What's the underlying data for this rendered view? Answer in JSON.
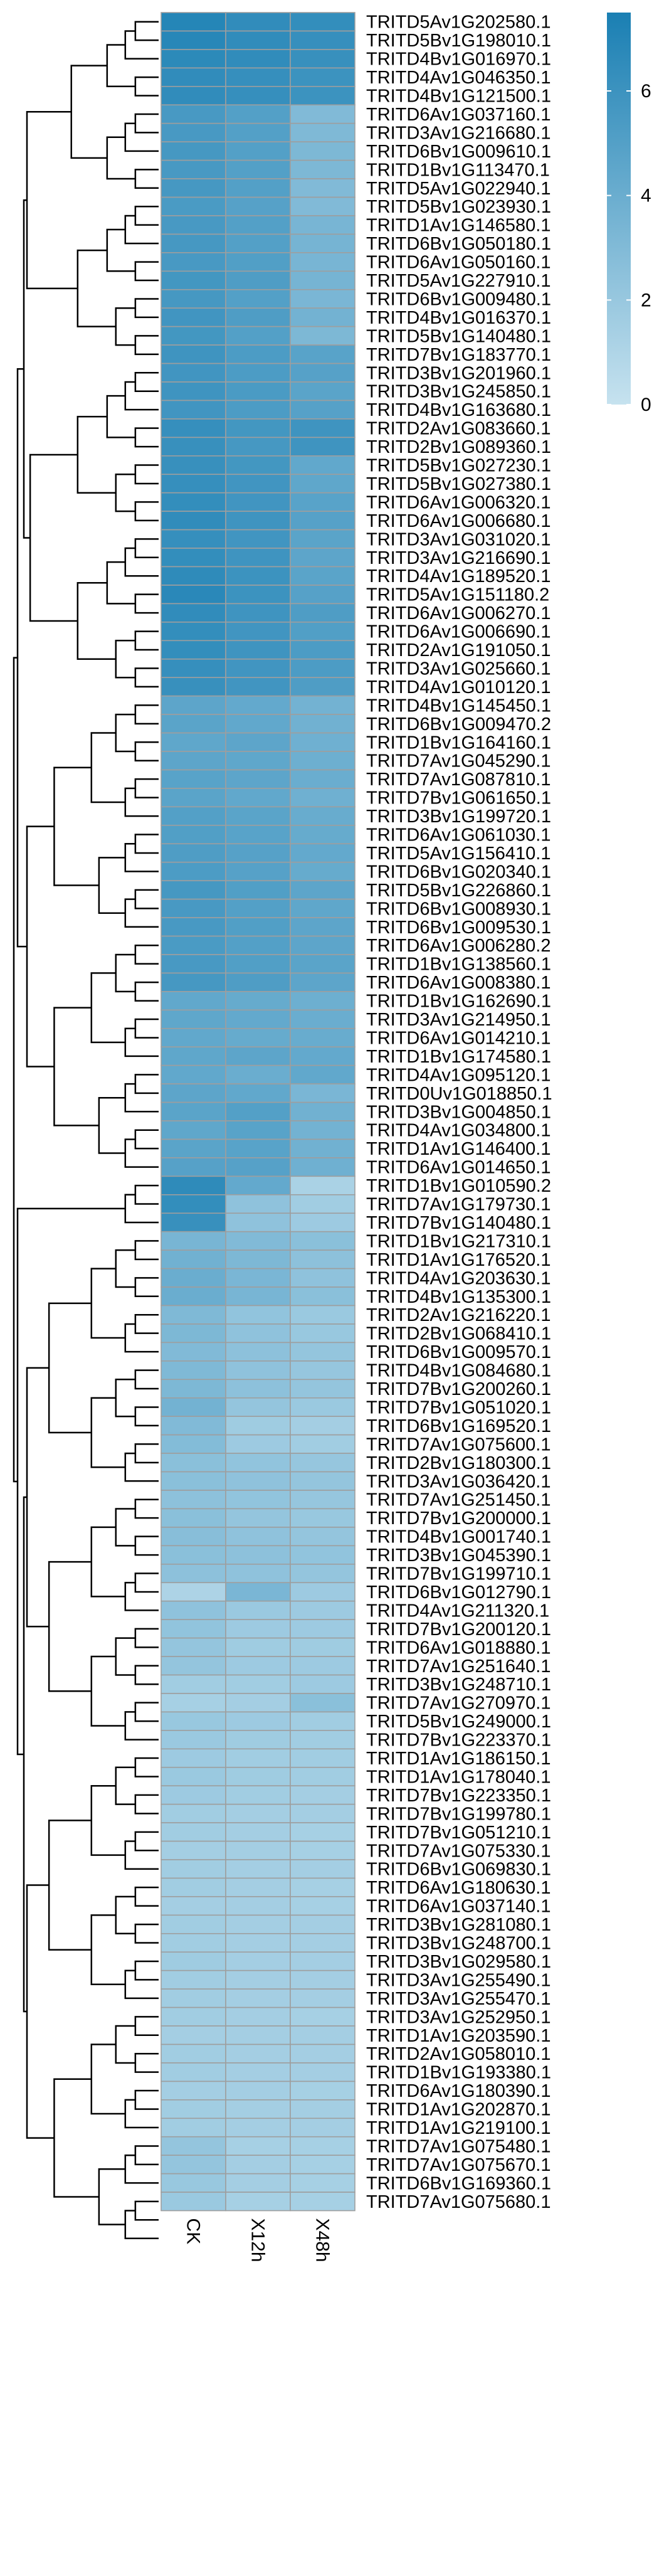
{
  "chart_data": {
    "type": "heatmap",
    "title": "",
    "columns": [
      "CK",
      "X12h",
      "X48h"
    ],
    "colorbar": {
      "min": 0,
      "max": 7.5,
      "ticks": [
        0,
        2,
        4,
        6
      ],
      "color_low": "#c6e2ef",
      "color_high": "#1a7fb3",
      "placement": "top-right"
    },
    "dendrogram": "left",
    "rows": [
      {
        "gene": "TRITD5Av1G202580.1",
        "values": [
          7.0,
          6.5,
          6.4
        ]
      },
      {
        "gene": "TRITD5Bv1G198010.1",
        "values": [
          6.9,
          6.5,
          6.3
        ]
      },
      {
        "gene": "TRITD4Bv1G016970.1",
        "values": [
          6.7,
          6.5,
          6.2
        ]
      },
      {
        "gene": "TRITD4Av1G046350.1",
        "values": [
          6.5,
          6.3,
          6.0
        ]
      },
      {
        "gene": "TRITD4Bv1G121500.1",
        "values": [
          6.5,
          6.3,
          6.0
        ]
      },
      {
        "gene": "TRITD6Av1G037160.1",
        "values": [
          5.5,
          5.0,
          3.0
        ]
      },
      {
        "gene": "TRITD3Av1G216680.1",
        "values": [
          5.5,
          5.0,
          3.1
        ]
      },
      {
        "gene": "TRITD6Bv1G009610.1",
        "values": [
          5.6,
          5.0,
          3.2
        ]
      },
      {
        "gene": "TRITD1Bv1G113470.1",
        "values": [
          5.5,
          5.0,
          3.2
        ]
      },
      {
        "gene": "TRITD5Av1G022940.1",
        "values": [
          5.6,
          5.0,
          3.0
        ]
      },
      {
        "gene": "TRITD5Bv1G023930.1",
        "values": [
          5.4,
          4.9,
          3.0
        ]
      },
      {
        "gene": "TRITD1Av1G146580.1",
        "values": [
          5.5,
          5.0,
          3.4
        ]
      },
      {
        "gene": "TRITD6Bv1G050180.1",
        "values": [
          5.6,
          5.0,
          3.5
        ]
      },
      {
        "gene": "TRITD6Av1G050160.1",
        "values": [
          5.5,
          5.1,
          3.4
        ]
      },
      {
        "gene": "TRITD5Av1G227910.1",
        "values": [
          5.7,
          5.2,
          3.5
        ]
      },
      {
        "gene": "TRITD6Bv1G009480.1",
        "values": [
          5.6,
          5.0,
          3.3
        ]
      },
      {
        "gene": "TRITD4Bv1G016370.1",
        "values": [
          5.8,
          5.2,
          3.6
        ]
      },
      {
        "gene": "TRITD5Bv1G140480.1",
        "values": [
          5.7,
          5.0,
          3.2
        ]
      },
      {
        "gene": "TRITD7Bv1G183770.1",
        "values": [
          5.9,
          5.3,
          4.8
        ]
      },
      {
        "gene": "TRITD3Bv1G201960.1",
        "values": [
          5.8,
          5.3,
          4.9
        ]
      },
      {
        "gene": "TRITD3Bv1G245850.1",
        "values": [
          5.9,
          5.4,
          4.7
        ]
      },
      {
        "gene": "TRITD4Bv1G163680.1",
        "values": [
          5.8,
          5.3,
          4.9
        ]
      },
      {
        "gene": "TRITD2Av1G083660.1",
        "values": [
          6.3,
          5.7,
          5.9
        ]
      },
      {
        "gene": "TRITD2Bv1G089360.1",
        "values": [
          6.2,
          5.6,
          5.9
        ]
      },
      {
        "gene": "TRITD5Bv1G027230.1",
        "values": [
          6.2,
          5.7,
          4.4
        ]
      },
      {
        "gene": "TRITD5Bv1G027380.1",
        "values": [
          6.3,
          5.8,
          4.5
        ]
      },
      {
        "gene": "TRITD6Av1G006320.1",
        "values": [
          6.4,
          5.8,
          4.8
        ]
      },
      {
        "gene": "TRITD6Av1G006680.1",
        "values": [
          6.5,
          5.9,
          4.9
        ]
      },
      {
        "gene": "TRITD3Av1G031020.1",
        "values": [
          6.3,
          5.8,
          4.7
        ]
      },
      {
        "gene": "TRITD3Av1G216690.1",
        "values": [
          6.4,
          5.9,
          4.6
        ]
      },
      {
        "gene": "TRITD4Av1G189520.1",
        "values": [
          6.6,
          6.0,
          4.7
        ]
      },
      {
        "gene": "TRITD5Av1G151180.2",
        "values": [
          6.8,
          6.0,
          4.9
        ]
      },
      {
        "gene": "TRITD6Av1G006270.1",
        "values": [
          6.5,
          5.9,
          5.2
        ]
      },
      {
        "gene": "TRITD6Av1G006690.1",
        "values": [
          6.4,
          5.8,
          5.1
        ]
      },
      {
        "gene": "TRITD2Av1G191050.1",
        "values": [
          6.4,
          5.9,
          5.3
        ]
      },
      {
        "gene": "TRITD3Av1G025660.1",
        "values": [
          6.3,
          5.8,
          5.3
        ]
      },
      {
        "gene": "TRITD4Av1G010120.1",
        "values": [
          6.2,
          5.8,
          5.2
        ]
      },
      {
        "gene": "TRITD4Bv1G145450.1",
        "values": [
          4.6,
          4.3,
          3.6
        ]
      },
      {
        "gene": "TRITD6Bv1G009470.2",
        "values": [
          4.7,
          4.4,
          3.7
        ]
      },
      {
        "gene": "TRITD1Bv1G164160.1",
        "values": [
          4.5,
          4.6,
          3.8
        ]
      },
      {
        "gene": "TRITD7Av1G045290.1",
        "values": [
          4.6,
          4.5,
          3.9
        ]
      },
      {
        "gene": "TRITD7Av1G087810.1",
        "values": [
          4.8,
          4.6,
          4.0
        ]
      },
      {
        "gene": "TRITD7Bv1G061650.1",
        "values": [
          4.7,
          4.4,
          3.8
        ]
      },
      {
        "gene": "TRITD3Bv1G199720.1",
        "values": [
          5.0,
          4.7,
          4.1
        ]
      },
      {
        "gene": "TRITD6Av1G061030.1",
        "values": [
          5.1,
          4.8,
          4.2
        ]
      },
      {
        "gene": "TRITD5Av1G156410.1",
        "values": [
          5.2,
          4.9,
          4.3
        ]
      },
      {
        "gene": "TRITD6Bv1G020340.1",
        "values": [
          5.3,
          4.9,
          4.2
        ]
      },
      {
        "gene": "TRITD5Bv1G226860.1",
        "values": [
          5.6,
          5.1,
          4.6
        ]
      },
      {
        "gene": "TRITD6Bv1G008930.1",
        "values": [
          5.5,
          5.0,
          4.5
        ]
      },
      {
        "gene": "TRITD6Bv1G009530.1",
        "values": [
          5.5,
          5.1,
          4.6
        ]
      },
      {
        "gene": "TRITD6Av1G006280.2",
        "values": [
          5.4,
          5.0,
          4.6
        ]
      },
      {
        "gene": "TRITD1Bv1G138560.1",
        "values": [
          5.5,
          5.1,
          4.7
        ]
      },
      {
        "gene": "TRITD6Av1G008380.1",
        "values": [
          5.6,
          5.2,
          4.6
        ]
      },
      {
        "gene": "TRITD1Bv1G162690.1",
        "values": [
          4.4,
          4.2,
          3.9
        ]
      },
      {
        "gene": "TRITD3Av1G214950.1",
        "values": [
          4.5,
          4.3,
          4.0
        ]
      },
      {
        "gene": "TRITD6Av1G014210.1",
        "values": [
          4.4,
          4.2,
          4.1
        ]
      },
      {
        "gene": "TRITD1Bv1G174580.1",
        "values": [
          4.5,
          4.6,
          4.3
        ]
      },
      {
        "gene": "TRITD4Av1G095120.1",
        "values": [
          4.4,
          4.0,
          4.4
        ]
      },
      {
        "gene": "TRITD0Uv1G018850.1",
        "values": [
          4.6,
          4.4,
          3.3
        ]
      },
      {
        "gene": "TRITD3Bv1G004850.1",
        "values": [
          4.7,
          5.0,
          3.7
        ]
      },
      {
        "gene": "TRITD4Av1G034800.1",
        "values": [
          4.5,
          4.8,
          3.6
        ]
      },
      {
        "gene": "TRITD1Av1G146400.1",
        "values": [
          4.7,
          4.8,
          3.7
        ]
      },
      {
        "gene": "TRITD6Av1G014650.1",
        "values": [
          4.9,
          4.9,
          3.8
        ]
      },
      {
        "gene": "TRITD1Bv1G010590.2",
        "values": [
          6.6,
          4.3,
          1.2
        ]
      },
      {
        "gene": "TRITD7Av1G179730.1",
        "values": [
          6.4,
          2.4,
          1.6
        ]
      },
      {
        "gene": "TRITD7Bv1G140480.1",
        "values": [
          6.2,
          2.4,
          1.8
        ]
      },
      {
        "gene": "TRITD1Bv1G217310.1",
        "values": [
          3.4,
          3.0,
          2.6
        ]
      },
      {
        "gene": "TRITD1Av1G176520.1",
        "values": [
          3.7,
          3.2,
          2.5
        ]
      },
      {
        "gene": "TRITD4Av1G203630.1",
        "values": [
          4.0,
          3.3,
          2.4
        ]
      },
      {
        "gene": "TRITD4Bv1G135300.1",
        "values": [
          4.0,
          3.4,
          2.6
        ]
      },
      {
        "gene": "TRITD2Av1G216220.1",
        "values": [
          3.1,
          2.3,
          1.9
        ]
      },
      {
        "gene": "TRITD2Bv1G068410.1",
        "values": [
          3.2,
          2.4,
          2.0
        ]
      },
      {
        "gene": "TRITD6Bv1G009570.1",
        "values": [
          3.0,
          2.5,
          2.2
        ]
      },
      {
        "gene": "TRITD4Bv1G084680.1",
        "values": [
          3.1,
          2.4,
          2.1
        ]
      },
      {
        "gene": "TRITD7Bv1G200260.1",
        "values": [
          3.2,
          2.5,
          2.2
        ]
      },
      {
        "gene": "TRITD7Bv1G051020.1",
        "values": [
          3.6,
          2.2,
          1.9
        ]
      },
      {
        "gene": "TRITD6Bv1G169520.1",
        "values": [
          3.0,
          1.7,
          1.5
        ]
      },
      {
        "gene": "TRITD7Av1G075600.1",
        "values": [
          2.9,
          1.8,
          1.6
        ]
      },
      {
        "gene": "TRITD2Bv1G180300.1",
        "values": [
          2.6,
          2.3,
          2.1
        ]
      },
      {
        "gene": "TRITD3Av1G036420.1",
        "values": [
          2.6,
          2.4,
          2.2
        ]
      },
      {
        "gene": "TRITD7Av1G251450.1",
        "values": [
          2.5,
          2.3,
          2.1
        ]
      },
      {
        "gene": "TRITD7Bv1G200000.1",
        "values": [
          2.6,
          2.2,
          2.0
        ]
      },
      {
        "gene": "TRITD4Bv1G001740.1",
        "values": [
          2.7,
          2.4,
          2.2
        ]
      },
      {
        "gene": "TRITD3Bv1G045390.1",
        "values": [
          2.6,
          2.5,
          2.3
        ]
      },
      {
        "gene": "TRITD7Bv1G199710.1",
        "values": [
          2.5,
          2.4,
          2.2
        ]
      },
      {
        "gene": "TRITD6Bv1G012790.1",
        "values": [
          1.1,
          3.3,
          1.8
        ]
      },
      {
        "gene": "TRITD4Av1G211320.1",
        "values": [
          2.4,
          1.9,
          1.8
        ]
      },
      {
        "gene": "TRITD7Bv1G200120.1",
        "values": [
          2.3,
          1.8,
          1.8
        ]
      },
      {
        "gene": "TRITD6Av1G018880.1",
        "values": [
          2.2,
          1.7,
          1.7
        ]
      },
      {
        "gene": "TRITD7Av1G251640.1",
        "values": [
          2.2,
          1.8,
          1.8
        ]
      },
      {
        "gene": "TRITD3Bv1G248710.1",
        "values": [
          1.6,
          1.6,
          1.8
        ]
      },
      {
        "gene": "TRITD7Av1G270970.1",
        "values": [
          1.4,
          1.5,
          2.6
        ]
      },
      {
        "gene": "TRITD5Bv1G249000.1",
        "values": [
          2.0,
          1.8,
          1.6
        ]
      },
      {
        "gene": "TRITD7Bv1G223370.1",
        "values": [
          1.9,
          1.7,
          1.6
        ]
      },
      {
        "gene": "TRITD1Av1G186150.1",
        "values": [
          1.8,
          1.6,
          1.6
        ]
      },
      {
        "gene": "TRITD1Av1G178040.1",
        "values": [
          1.9,
          1.7,
          1.6
        ]
      },
      {
        "gene": "TRITD7Bv1G223350.1",
        "values": [
          1.8,
          1.6,
          1.5
        ]
      },
      {
        "gene": "TRITD7Bv1G199780.1",
        "values": [
          1.6,
          1.5,
          1.5
        ]
      },
      {
        "gene": "TRITD7Bv1G051210.1",
        "values": [
          1.6,
          1.5,
          1.4
        ]
      },
      {
        "gene": "TRITD7Av1G075330.1",
        "values": [
          1.5,
          1.5,
          1.4
        ]
      },
      {
        "gene": "TRITD6Bv1G069830.1",
        "values": [
          1.6,
          1.5,
          1.5
        ]
      },
      {
        "gene": "TRITD6Av1G180630.1",
        "values": [
          1.6,
          1.5,
          1.4
        ]
      },
      {
        "gene": "TRITD6Av1G037140.1",
        "values": [
          1.5,
          1.5,
          1.4
        ]
      },
      {
        "gene": "TRITD3Bv1G281080.1",
        "values": [
          1.6,
          1.5,
          1.5
        ]
      },
      {
        "gene": "TRITD3Bv1G248700.1",
        "values": [
          1.6,
          1.5,
          1.5
        ]
      },
      {
        "gene": "TRITD3Bv1G029580.1",
        "values": [
          1.7,
          1.5,
          1.5
        ]
      },
      {
        "gene": "TRITD3Av1G255490.1",
        "values": [
          1.6,
          1.5,
          1.5
        ]
      },
      {
        "gene": "TRITD3Av1G255470.1",
        "values": [
          1.6,
          1.5,
          1.5
        ]
      },
      {
        "gene": "TRITD3Av1G252950.1",
        "values": [
          1.6,
          1.5,
          1.4
        ]
      },
      {
        "gene": "TRITD1Av1G203590.1",
        "values": [
          1.5,
          1.5,
          1.5
        ]
      },
      {
        "gene": "TRITD2Av1G058010.1",
        "values": [
          1.6,
          1.5,
          1.5
        ]
      },
      {
        "gene": "TRITD1Bv1G193380.1",
        "values": [
          1.6,
          1.5,
          1.5
        ]
      },
      {
        "gene": "TRITD6Av1G180390.1",
        "values": [
          1.5,
          1.5,
          1.4
        ]
      },
      {
        "gene": "TRITD1Av1G202870.1",
        "values": [
          1.6,
          1.5,
          1.5
        ]
      },
      {
        "gene": "TRITD1Av1G219100.1",
        "values": [
          1.6,
          1.5,
          1.5
        ]
      },
      {
        "gene": "TRITD7Av1G075480.1",
        "values": [
          2.2,
          1.4,
          1.4
        ]
      },
      {
        "gene": "TRITD7Av1G075670.1",
        "values": [
          2.2,
          1.5,
          1.4
        ]
      },
      {
        "gene": "TRITD6Bv1G169360.1",
        "values": [
          2.0,
          1.5,
          1.4
        ]
      },
      {
        "gene": "TRITD7Av1G075680.1",
        "values": [
          1.9,
          1.4,
          1.4
        ]
      }
    ]
  }
}
